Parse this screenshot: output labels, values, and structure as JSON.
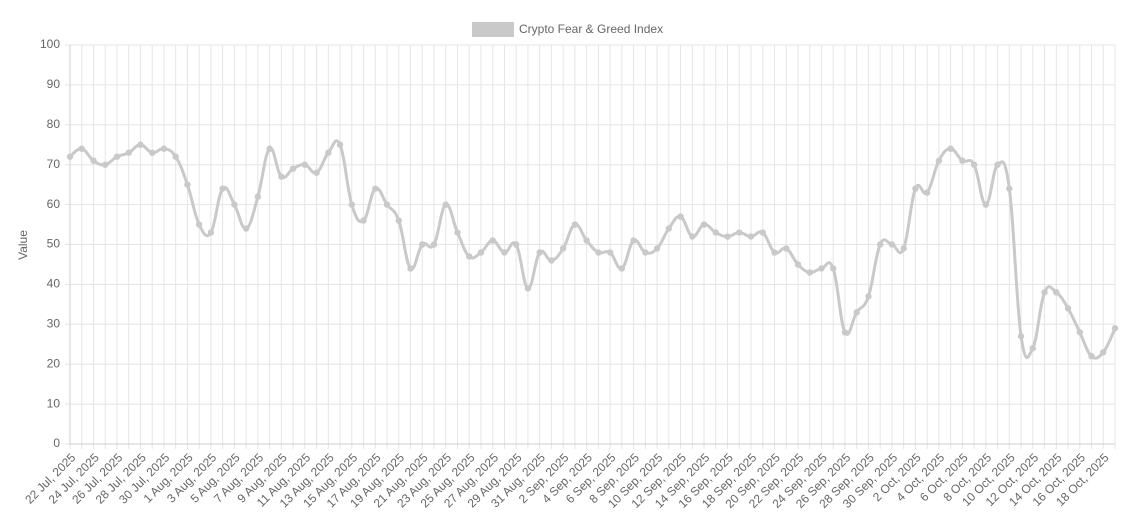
{
  "chart_data": {
    "type": "line",
    "y_label": "Value",
    "categories": [
      "22 Jul, 2025",
      null,
      "24 Jul, 2025",
      null,
      "26 Jul, 2025",
      null,
      "28 Jul, 2025",
      null,
      "30 Jul, 2025",
      null,
      "1 Aug, 2025",
      null,
      "3 Aug, 2025",
      null,
      "5 Aug, 2025",
      null,
      "7 Aug, 2025",
      null,
      "9 Aug, 2025",
      null,
      "11 Aug, 2025",
      null,
      "13 Aug, 2025",
      null,
      "15 Aug, 2025",
      null,
      "17 Aug, 2025",
      null,
      "19 Aug, 2025",
      null,
      "21 Aug, 2025",
      null,
      "23 Aug, 2025",
      null,
      "25 Aug, 2025",
      null,
      "27 Aug, 2025",
      null,
      "29 Aug, 2025",
      null,
      "31 Aug, 2025",
      null,
      "2 Sep, 2025",
      null,
      "4 Sep, 2025",
      null,
      "6 Sep, 2025",
      null,
      "8 Sep, 2025",
      null,
      "10 Sep, 2025",
      null,
      "12 Sep, 2025",
      null,
      "14 Sep, 2025",
      null,
      "16 Sep, 2025",
      null,
      "18 Sep, 2025",
      null,
      "20 Sep, 2025",
      null,
      "22 Sep, 2025",
      null,
      "24 Sep, 2025",
      null,
      "26 Sep, 2025",
      null,
      "28 Sep, 2025",
      null,
      "30 Sep, 2025",
      null,
      "2 Oct, 2025",
      null,
      "4 Oct, 2025",
      null,
      "6 Oct, 2025",
      null,
      "8 Oct, 2025",
      null,
      "10 Oct, 2025",
      null,
      "12 Oct, 2025",
      null,
      "14 Oct, 2025",
      null,
      "16 Oct, 2025",
      null,
      "18 Oct, 2025",
      null
    ],
    "series": [
      {
        "name": "Crypto Fear & Greed Index",
        "color": "#c9c9c9",
        "values": [
          72,
          74,
          71,
          70,
          72,
          73,
          75,
          73,
          74,
          72,
          65,
          55,
          53,
          64,
          60,
          54,
          62,
          74,
          67,
          69,
          70,
          68,
          73,
          75,
          60,
          56,
          64,
          60,
          56,
          44,
          50,
          50,
          60,
          53,
          47,
          48,
          51,
          48,
          50,
          39,
          48,
          46,
          49,
          55,
          51,
          48,
          48,
          44,
          51,
          48,
          49,
          54,
          57,
          52,
          55,
          53,
          52,
          53,
          52,
          53,
          48,
          49,
          45,
          43,
          44,
          44,
          28,
          33,
          37,
          50,
          50,
          49,
          64,
          63,
          71,
          74,
          71,
          70,
          60,
          70,
          64,
          27,
          24,
          38,
          38,
          34,
          28,
          22,
          23,
          29
        ]
      }
    ],
    "ylim": [
      0,
      100
    ],
    "yticks": [
      0,
      10,
      20,
      30,
      40,
      50,
      60,
      70,
      80,
      90,
      100
    ],
    "grid": true
  }
}
